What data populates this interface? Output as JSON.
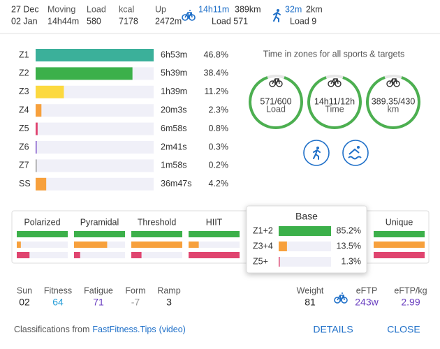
{
  "header": {
    "dates": [
      "27 Dec",
      "02 Jan"
    ],
    "stats": [
      {
        "label": "Moving",
        "value": "14h44m"
      },
      {
        "label": "Load",
        "value": "580"
      },
      {
        "label": "kcal",
        "value": "7178"
      },
      {
        "label": "Up",
        "value": "2472m"
      }
    ],
    "ride": {
      "time": "14h11m",
      "distance": "389km",
      "load": "Load 571"
    },
    "run": {
      "time": "32m",
      "distance": "2km",
      "load": "Load 9"
    }
  },
  "zones": [
    {
      "name": "Z1",
      "time": "6h53m",
      "percent": {
        "value": 46.8,
        "label": "46.8%"
      },
      "color": "#3bb09a"
    },
    {
      "name": "Z2",
      "time": "5h39m",
      "percent": {
        "value": 38.4,
        "label": "38.4%"
      },
      "color": "#3cb04a"
    },
    {
      "name": "Z3",
      "time": "1h39m",
      "percent": {
        "value": 11.2,
        "label": "11.2%"
      },
      "color": "#fcd93f"
    },
    {
      "name": "Z4",
      "time": "20m3s",
      "percent": {
        "value": 2.3,
        "label": "2.3%"
      },
      "color": "#f7a03c"
    },
    {
      "name": "Z5",
      "time": "6m58s",
      "percent": {
        "value": 0.8,
        "label": "0.8%"
      },
      "color": "#e0446f"
    },
    {
      "name": "Z6",
      "time": "2m41s",
      "percent": {
        "value": 0.3,
        "label": "0.3%"
      },
      "color": "#7b4fc9"
    },
    {
      "name": "Z7",
      "time": "1m58s",
      "percent": {
        "value": 0.2,
        "label": "0.2%"
      },
      "color": "#999999"
    },
    {
      "name": "SS",
      "time": "36m47s",
      "percent": {
        "value": 4.2,
        "label": "4.2%"
      },
      "color": "#f7a03c"
    }
  ],
  "targets": {
    "title": "Time in zones for all sports & targets",
    "rings": [
      {
        "value": "571/600",
        "label": "Load"
      },
      {
        "value": "14h11/12h",
        "label": "Time"
      },
      {
        "value": "389.35/430",
        "label": "km"
      }
    ]
  },
  "classifications": {
    "colors": [
      "#3cb04a",
      "#f7a03c",
      "#e0446f"
    ],
    "cards": [
      {
        "name": "Polarized",
        "bars": [
          100,
          8,
          25
        ]
      },
      {
        "name": "Pyramidal",
        "bars": [
          100,
          65,
          12
        ]
      },
      {
        "name": "Threshold",
        "bars": [
          100,
          100,
          20
        ]
      },
      {
        "name": "HIIT",
        "bars": [
          100,
          20,
          100
        ]
      },
      {
        "name": "Unique",
        "bars": [
          100,
          100,
          100
        ]
      }
    ],
    "popup": {
      "name": "Base",
      "rows": [
        {
          "label": "Z1+2",
          "value": 85.2,
          "value_label": "85.2%"
        },
        {
          "label": "Z3+4",
          "value": 13.5,
          "value_label": "13.5%"
        },
        {
          "label": "Z5+",
          "value": 1.3,
          "value_label": "1.3%"
        }
      ]
    }
  },
  "fitness": [
    {
      "label": "Sun",
      "value": "02",
      "color": "#222222"
    },
    {
      "label": "Fitness",
      "value": "64",
      "color": "#2a9fd8"
    },
    {
      "label": "Fatigue",
      "value": "71",
      "color": "#6a3fc0"
    },
    {
      "label": "Form",
      "value": "-7",
      "color": "#999999"
    },
    {
      "label": "Ramp",
      "value": "3",
      "color": "#222222"
    }
  ],
  "power": [
    {
      "label": "Weight",
      "value": "81",
      "color": "#222222"
    },
    {
      "label": "eFTP",
      "value": "243w",
      "color": "#6a3fc0"
    },
    {
      "label": "eFTP/kg",
      "value": "2.99",
      "color": "#6a3fc0"
    }
  ],
  "footer": {
    "text": "Classifications from",
    "link": "FastFitness.Tips",
    "video": "(video)",
    "buttons": [
      "DETAILS",
      "CLOSE"
    ]
  }
}
